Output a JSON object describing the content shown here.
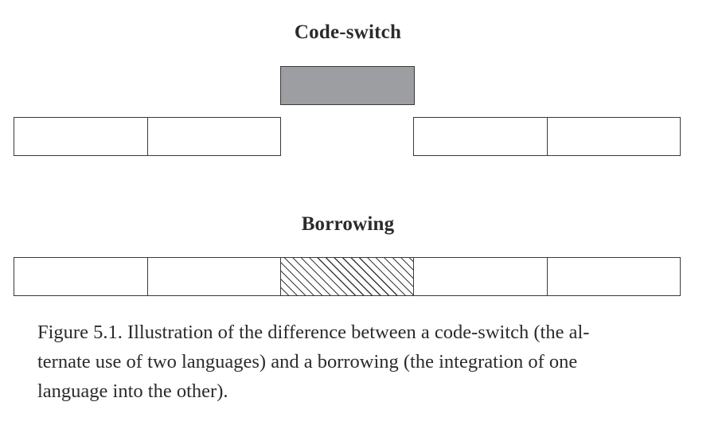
{
  "diagram": {
    "code_switch": {
      "title": "Code-switch",
      "row_boxes": 4,
      "inserted_box_fill": "#9d9ea1"
    },
    "borrowing": {
      "title": "Borrowing",
      "row_boxes": 5,
      "integrated_box_pattern": "diagonal-hatch"
    }
  },
  "caption": {
    "lines": [
      "Figure 5.1.  Illustration of the difference between a code-switch (the al-",
      "ternate use of two languages) and a borrowing (the integration of one",
      "language into the other)."
    ]
  },
  "colors": {
    "stroke": "#3a3a3a",
    "text": "#2b2b2b",
    "gray_box": "#9d9ea1",
    "background": "#ffffff"
  }
}
